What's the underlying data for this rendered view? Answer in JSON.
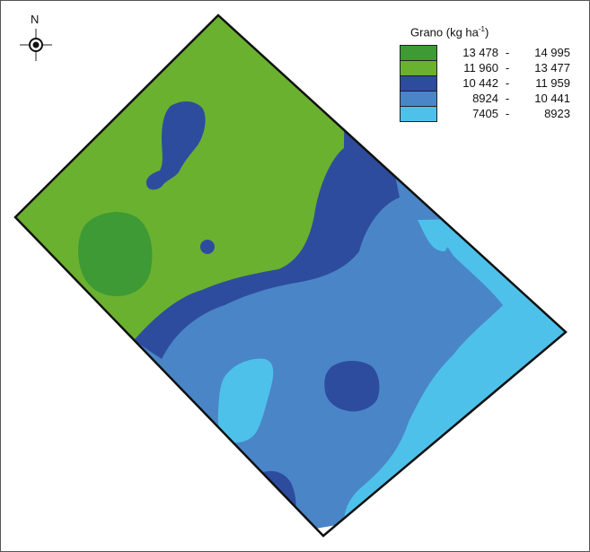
{
  "compass": {
    "label": "N",
    "icon": "compass-north-arrow-icon"
  },
  "legend": {
    "title": "Grano (kg ha",
    "title_sup": "-1",
    "title_close": ")",
    "classes": [
      {
        "min": "13 478",
        "max": "14 995",
        "color": "#3d9a35"
      },
      {
        "min": "11 960",
        "max": "13 477",
        "color": "#6ab130"
      },
      {
        "min": "10 442",
        "max": "11 959",
        "color": "#2e4c9e"
      },
      {
        "min": "8924",
        "max": "10 441",
        "color": "#4a86c7"
      },
      {
        "min": "7405",
        "max": "8923",
        "color": "#4ec1ea"
      }
    ],
    "separator": "-"
  },
  "colors": {
    "green_dark": "#3d9a35",
    "green_light": "#6ab130",
    "blue_dark": "#2e4c9e",
    "blue_mid": "#4a86c7",
    "blue_light": "#4ec1ea",
    "background": "#ffffff"
  }
}
